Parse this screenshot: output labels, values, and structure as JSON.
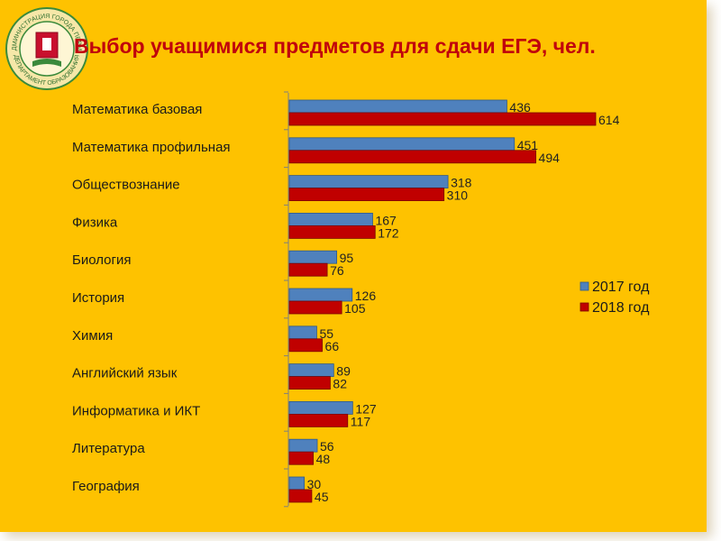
{
  "title": "Выбор учащимися предметов для сдачи ЕГЭ, чел.",
  "emblem": {
    "top_text": "АДМИНИСТРАЦИЯ ГОРОДА ПЕРМИ",
    "bottom_text": "ДЕПАРТАМЕНТ ОБРАЗОВАНИЯ"
  },
  "colors": {
    "background": "#fec200",
    "title": "#c0000c",
    "series_2017": "#4f81bd",
    "series_2018": "#c00000"
  },
  "chart_data": {
    "type": "bar",
    "orientation": "horizontal",
    "title": "Выбор учащимися предметов для сдачи ЕГЭ, чел.",
    "categories": [
      "Математика базовая",
      "Математика профильная",
      "Обществознание",
      "Физика",
      "Биология",
      "История",
      "Химия",
      "Английский язык",
      "Информатика и ИКТ",
      "Литература",
      "География"
    ],
    "series": [
      {
        "name": "2017 год",
        "color": "#4f81bd",
        "values": [
          436,
          451,
          318,
          167,
          95,
          126,
          55,
          89,
          127,
          56,
          30
        ]
      },
      {
        "name": "2018 год",
        "color": "#c00000",
        "values": [
          614,
          494,
          310,
          172,
          76,
          105,
          66,
          82,
          117,
          48,
          45
        ]
      }
    ],
    "xlim": [
      0,
      640
    ],
    "grid": false,
    "legend_position": "right"
  }
}
